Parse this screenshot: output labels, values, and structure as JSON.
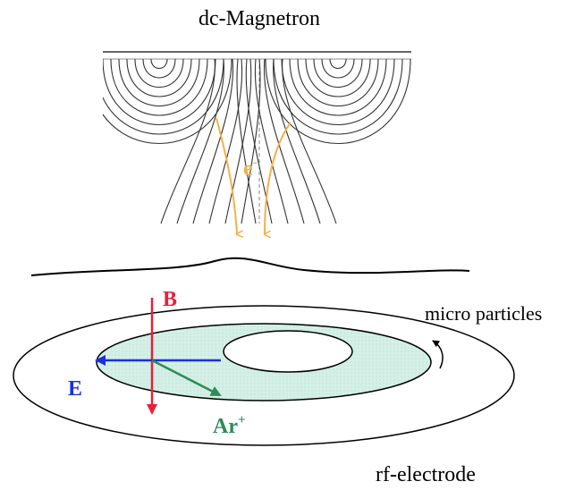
{
  "title": "dc-Magnetron",
  "labels": {
    "electron": {
      "text": "e",
      "sup": "-"
    },
    "b_field": "B",
    "e_field": "E",
    "argon": {
      "text": "Ar",
      "sup": "+"
    },
    "particles": "micro particles",
    "electrode": "rf-electrode"
  }
}
